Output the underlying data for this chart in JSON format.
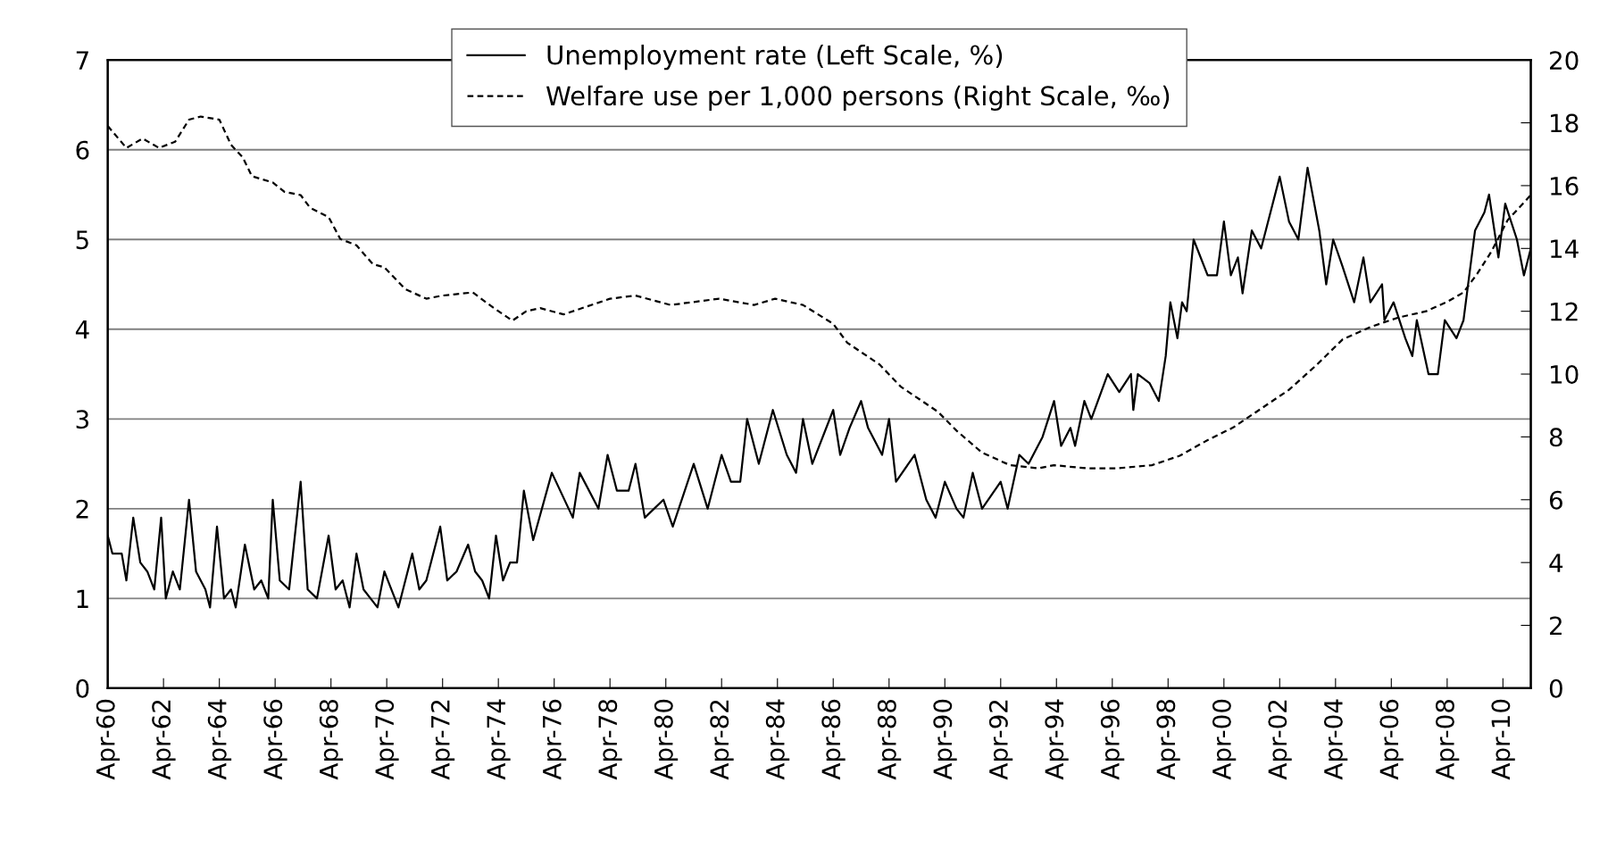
{
  "chart_data": {
    "type": "line",
    "xlim": [
      "1960-04",
      "2011-04"
    ],
    "xticks": [
      {
        "value": "1960-04",
        "label": "Apr-60"
      },
      {
        "value": "1962-04",
        "label": "Apr-62"
      },
      {
        "value": "1964-04",
        "label": "Apr-64"
      },
      {
        "value": "1966-04",
        "label": "Apr-66"
      },
      {
        "value": "1968-04",
        "label": "Apr-68"
      },
      {
        "value": "1970-04",
        "label": "Apr-70"
      },
      {
        "value": "1972-04",
        "label": "Apr-72"
      },
      {
        "value": "1974-04",
        "label": "Apr-74"
      },
      {
        "value": "1976-04",
        "label": "Apr-76"
      },
      {
        "value": "1978-04",
        "label": "Apr-78"
      },
      {
        "value": "1980-04",
        "label": "Apr-80"
      },
      {
        "value": "1982-04",
        "label": "Apr-82"
      },
      {
        "value": "1984-04",
        "label": "Apr-84"
      },
      {
        "value": "1986-04",
        "label": "Apr-86"
      },
      {
        "value": "1988-04",
        "label": "Apr-88"
      },
      {
        "value": "1990-04",
        "label": "Apr-90"
      },
      {
        "value": "1992-04",
        "label": "Apr-92"
      },
      {
        "value": "1994-04",
        "label": "Apr-94"
      },
      {
        "value": "1996-04",
        "label": "Apr-96"
      },
      {
        "value": "1998-04",
        "label": "Apr-98"
      },
      {
        "value": "2000-04",
        "label": "Apr-00"
      },
      {
        "value": "2002-04",
        "label": "Apr-02"
      },
      {
        "value": "2004-04",
        "label": "Apr-04"
      },
      {
        "value": "2006-04",
        "label": "Apr-06"
      },
      {
        "value": "2008-04",
        "label": "Apr-08"
      },
      {
        "value": "2010-04",
        "label": "Apr-10"
      }
    ],
    "ylim": [
      0,
      7
    ],
    "yticks": [
      0,
      1,
      2,
      3,
      4,
      5,
      6,
      7
    ],
    "y2lim": [
      0,
      20
    ],
    "y2ticks": [
      0,
      2,
      4,
      6,
      8,
      10,
      12,
      14,
      16,
      18,
      20
    ],
    "grid": "y",
    "legend": "top",
    "marker": "none",
    "series": [
      {
        "name": "Unemployment rate (Left Scale, %)",
        "color": "#000000",
        "line_style": "solid",
        "x": [
          "1960-04",
          "1960-06",
          "1960-10",
          "1960-12",
          "1961-03",
          "1961-06",
          "1961-09",
          "1961-12",
          "1962-03",
          "1962-05",
          "1962-08",
          "1962-11",
          "1963-03",
          "1963-06",
          "1963-10",
          "1963-12",
          "1964-03",
          "1964-06",
          "1964-09",
          "1964-11",
          "1965-03",
          "1965-07",
          "1965-10",
          "1966-01",
          "1966-03",
          "1966-06",
          "1966-10",
          "1967-03",
          "1967-06",
          "1967-10",
          "1968-03",
          "1968-06",
          "1968-09",
          "1968-12",
          "1969-03",
          "1969-06",
          "1969-09",
          "1969-12",
          "1970-03",
          "1970-06",
          "1970-09",
          "1971-03",
          "1971-06",
          "1971-09",
          "1972-03",
          "1972-06",
          "1972-10",
          "1973-03",
          "1973-06",
          "1973-09",
          "1973-12",
          "1974-03",
          "1974-06",
          "1974-09",
          "1974-12",
          "1975-03",
          "1975-07",
          "1976-03",
          "1976-12",
          "1977-03",
          "1977-11",
          "1978-03",
          "1978-07",
          "1978-12",
          "1979-03",
          "1979-07",
          "1980-03",
          "1980-07",
          "1981-04",
          "1981-10",
          "1982-04",
          "1982-08",
          "1982-12",
          "1983-03",
          "1983-08",
          "1984-02",
          "1984-08",
          "1984-12",
          "1985-03",
          "1985-07",
          "1986-04",
          "1986-07",
          "1986-11",
          "1987-04",
          "1987-07",
          "1988-01",
          "1988-04",
          "1988-07",
          "1989-03",
          "1989-08",
          "1989-12",
          "1990-04",
          "1990-09",
          "1990-12",
          "1991-04",
          "1991-08",
          "1992-04",
          "1992-07",
          "1992-12",
          "1993-04",
          "1993-10",
          "1994-03",
          "1994-06",
          "1994-10",
          "1994-12",
          "1995-04",
          "1995-07",
          "1996-02",
          "1996-07",
          "1996-12",
          "1997-01",
          "1997-03",
          "1997-08",
          "1997-12",
          "1998-03",
          "1998-05",
          "1998-08",
          "1998-10",
          "1998-12",
          "1999-03",
          "1999-09",
          "2000-01",
          "2000-04",
          "2000-07",
          "2000-10",
          "2000-12",
          "2001-04",
          "2001-08",
          "2001-10",
          "2002-04",
          "2002-08",
          "2002-12",
          "2003-04",
          "2003-09",
          "2003-12",
          "2004-03",
          "2004-07",
          "2004-12",
          "2005-04",
          "2005-07",
          "2005-12",
          "2006-01",
          "2006-05",
          "2006-10",
          "2007-01",
          "2007-03",
          "2007-08",
          "2007-12",
          "2008-03",
          "2008-08",
          "2008-11",
          "2009-04",
          "2009-08",
          "2009-10",
          "2010-02",
          "2010-05",
          "2010-10",
          "2011-01",
          "2011-04"
        ],
        "values": [
          1.7,
          1.5,
          1.5,
          1.2,
          1.9,
          1.4,
          1.3,
          1.1,
          1.9,
          1.0,
          1.3,
          1.1,
          2.1,
          1.3,
          1.1,
          0.9,
          1.8,
          1.0,
          1.1,
          0.9,
          1.6,
          1.1,
          1.2,
          1.0,
          2.1,
          1.2,
          1.1,
          2.3,
          1.1,
          1.0,
          1.7,
          1.1,
          1.2,
          0.9,
          1.5,
          1.1,
          1.0,
          0.9,
          1.3,
          1.1,
          0.9,
          1.5,
          1.1,
          1.2,
          1.8,
          1.2,
          1.3,
          1.6,
          1.3,
          1.2,
          1.0,
          1.7,
          1.2,
          1.4,
          1.4,
          2.2,
          1.65,
          2.4,
          1.9,
          2.4,
          2.0,
          2.6,
          2.2,
          2.2,
          2.5,
          1.9,
          2.1,
          1.8,
          2.5,
          2.0,
          2.6,
          2.3,
          2.3,
          3.0,
          2.5,
          3.1,
          2.6,
          2.4,
          3.0,
          2.5,
          3.1,
          2.6,
          2.9,
          3.2,
          2.9,
          2.6,
          3.0,
          2.3,
          2.6,
          2.1,
          1.9,
          2.3,
          2.0,
          1.9,
          2.4,
          2.0,
          2.3,
          2.0,
          2.6,
          2.5,
          2.8,
          3.2,
          2.7,
          2.9,
          2.7,
          3.2,
          3.0,
          3.5,
          3.3,
          3.5,
          3.1,
          3.5,
          3.4,
          3.2,
          3.7,
          4.3,
          3.9,
          4.3,
          4.2,
          5.0,
          4.6,
          4.6,
          5.2,
          4.6,
          4.8,
          4.4,
          5.1,
          4.9,
          5.1,
          5.7,
          5.2,
          5.0,
          5.8,
          5.1,
          4.5,
          5.0,
          4.7,
          4.3,
          4.8,
          4.3,
          4.5,
          4.1,
          4.3,
          3.9,
          3.7,
          4.1,
          3.5,
          3.5,
          4.1,
          3.9,
          4.1,
          5.1,
          5.3,
          5.5,
          4.8,
          5.4,
          5.0,
          4.6,
          4.9
        ]
      },
      {
        "name": "Welfare use per 1,000 persons (Right Scale, ‰)",
        "color": "#000000",
        "line_style": "dashed",
        "axis": "y2",
        "x": [
          "1960-04",
          "1960-12",
          "1961-07",
          "1962-02",
          "1962-09",
          "1963-03",
          "1963-08",
          "1964-04",
          "1964-09",
          "1965-02",
          "1965-06",
          "1966-03",
          "1966-08",
          "1967-03",
          "1967-07",
          "1968-03",
          "1968-08",
          "1969-03",
          "1969-10",
          "1970-03",
          "1970-12",
          "1971-09",
          "1972-04",
          "1973-05",
          "1974-02",
          "1974-10",
          "1975-04",
          "1975-10",
          "1976-08",
          "1978-04",
          "1979-03",
          "1980-06",
          "1982-03",
          "1983-06",
          "1984-03",
          "1985-03",
          "1986-04",
          "1986-10",
          "1987-12",
          "1988-09",
          "1990-01",
          "1990-09",
          "1991-08",
          "1992-08",
          "1993-08",
          "1994-03",
          "1995-05",
          "1996-06",
          "1997-09",
          "1998-09",
          "1999-09",
          "2000-08",
          "2001-08",
          "2002-08",
          "2003-08",
          "2004-07",
          "2005-07",
          "2006-07",
          "2007-07",
          "2008-04",
          "2008-11",
          "2009-05",
          "2009-11",
          "2010-06",
          "2011-04"
        ],
        "values": [
          17.9,
          17.2,
          17.5,
          17.2,
          17.4,
          18.1,
          18.2,
          18.1,
          17.3,
          16.9,
          16.3,
          16.1,
          15.8,
          15.7,
          15.3,
          15.0,
          14.3,
          14.1,
          13.5,
          13.4,
          12.7,
          12.4,
          12.5,
          12.6,
          12.1,
          11.7,
          12.0,
          12.1,
          11.9,
          12.4,
          12.5,
          12.2,
          12.4,
          12.2,
          12.4,
          12.2,
          11.6,
          11.0,
          10.3,
          9.6,
          8.8,
          8.2,
          7.5,
          7.1,
          7.0,
          7.1,
          7.0,
          7.0,
          7.1,
          7.4,
          7.9,
          8.3,
          8.9,
          9.5,
          10.3,
          11.1,
          11.5,
          11.8,
          12.0,
          12.3,
          12.6,
          13.2,
          13.9,
          14.9,
          15.7
        ]
      }
    ]
  }
}
